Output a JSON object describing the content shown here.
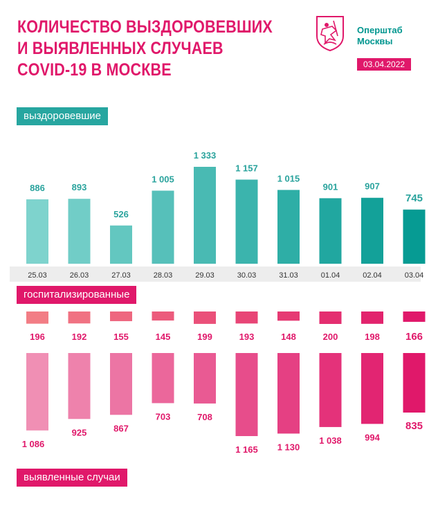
{
  "header": {
    "title_lines": [
      "КОЛИЧЕСТВО ВЫЗДОРОВЕВШИХ",
      "И ВЫЯВЛЕННЫХ СЛУЧАЕВ",
      "COVID-19 В МОСКВЕ"
    ],
    "brand_line1": "Оперштаб",
    "brand_line2": "Москвы",
    "date": "03.04.2022"
  },
  "sections": {
    "recovered": "выздоровевшие",
    "hospitalized": "госпитализированные",
    "cases": "выявленные случаи"
  },
  "colors": {
    "teal_start": "#7ed3cd",
    "teal_end": "#069b93",
    "pink_start": "#f08fb4",
    "pink_end": "#e0186a",
    "hosp_start": "#f27d85",
    "hosp_end": "#e0186a",
    "label_teal": "#2aa39d",
    "label_pink": "#e0186a",
    "axis_text": "#333333"
  },
  "chart_data": {
    "type": "bar",
    "categories": [
      "25.03",
      "26.03",
      "27.03",
      "28.03",
      "29.03",
      "30.03",
      "31.03",
      "01.04",
      "02.04",
      "03.04"
    ],
    "series": [
      {
        "name": "выздоровевшие",
        "values": [
          886,
          893,
          526,
          1005,
          1333,
          1157,
          1015,
          901,
          907,
          745
        ],
        "labels": [
          "886",
          "893",
          "526",
          "1 005",
          "1 333",
          "1 157",
          "1 015",
          "901",
          "907",
          "745"
        ]
      },
      {
        "name": "госпитализированные",
        "values": [
          196,
          192,
          155,
          145,
          199,
          193,
          148,
          200,
          198,
          166
        ],
        "labels": [
          "196",
          "192",
          "155",
          "145",
          "199",
          "193",
          "148",
          "200",
          "198",
          "166"
        ]
      },
      {
        "name": "выявленные случаи",
        "values": [
          1086,
          925,
          867,
          703,
          708,
          1165,
          1130,
          1038,
          994,
          835
        ],
        "labels": [
          "1 086",
          "925",
          "867",
          "703",
          "708",
          "1 165",
          "1 130",
          "1 038",
          "994",
          "835"
        ]
      }
    ]
  }
}
